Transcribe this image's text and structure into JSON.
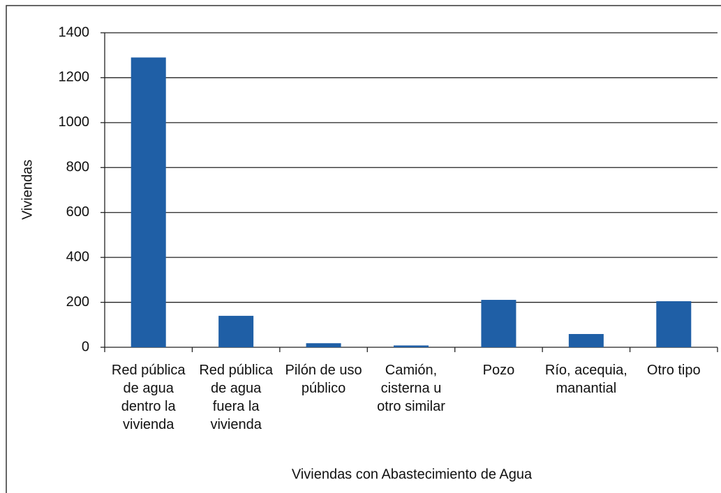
{
  "chart_data": {
    "type": "bar",
    "x_label": "Viviendas con Abastecimiento de Agua",
    "y_label": "Viviendas",
    "categories": [
      "Red pública de agua dentro la vivienda",
      "Red pública de agua fuera la vivienda",
      "Pilón de uso público",
      "Camión, cisterna u otro similar",
      "Pozo",
      "Río, acequia, manantial",
      "Otro tipo"
    ],
    "values": [
      1290,
      140,
      18,
      8,
      211,
      59,
      205
    ],
    "color": "#1f5fa6",
    "ylim": [
      0,
      1400
    ],
    "yticks": [
      0,
      200,
      400,
      600,
      800,
      1000,
      1200,
      1400
    ],
    "grid": true
  }
}
